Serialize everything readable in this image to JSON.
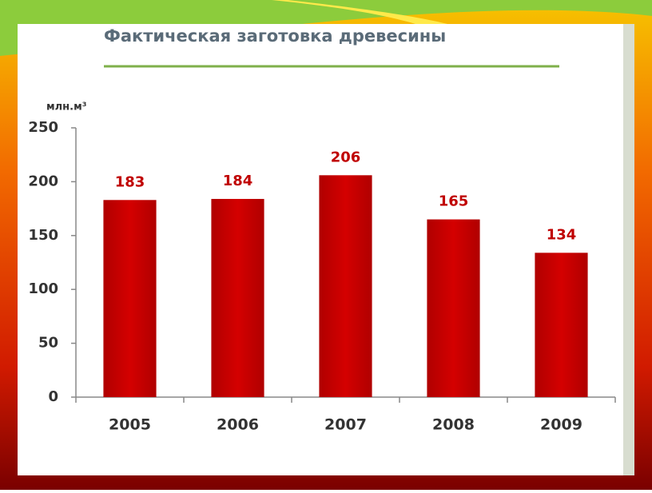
{
  "chart_data": {
    "type": "bar",
    "title": "Фактическая заготовка древесины",
    "y_label": "млн.м³",
    "categories": [
      "2005",
      "2006",
      "2007",
      "2008",
      "2009"
    ],
    "values": [
      183,
      184,
      206,
      165,
      134
    ],
    "color": "#c00000",
    "ylim": [
      0,
      250
    ],
    "yticks": [
      0,
      50,
      100,
      150,
      200,
      250
    ],
    "grid": false
  }
}
